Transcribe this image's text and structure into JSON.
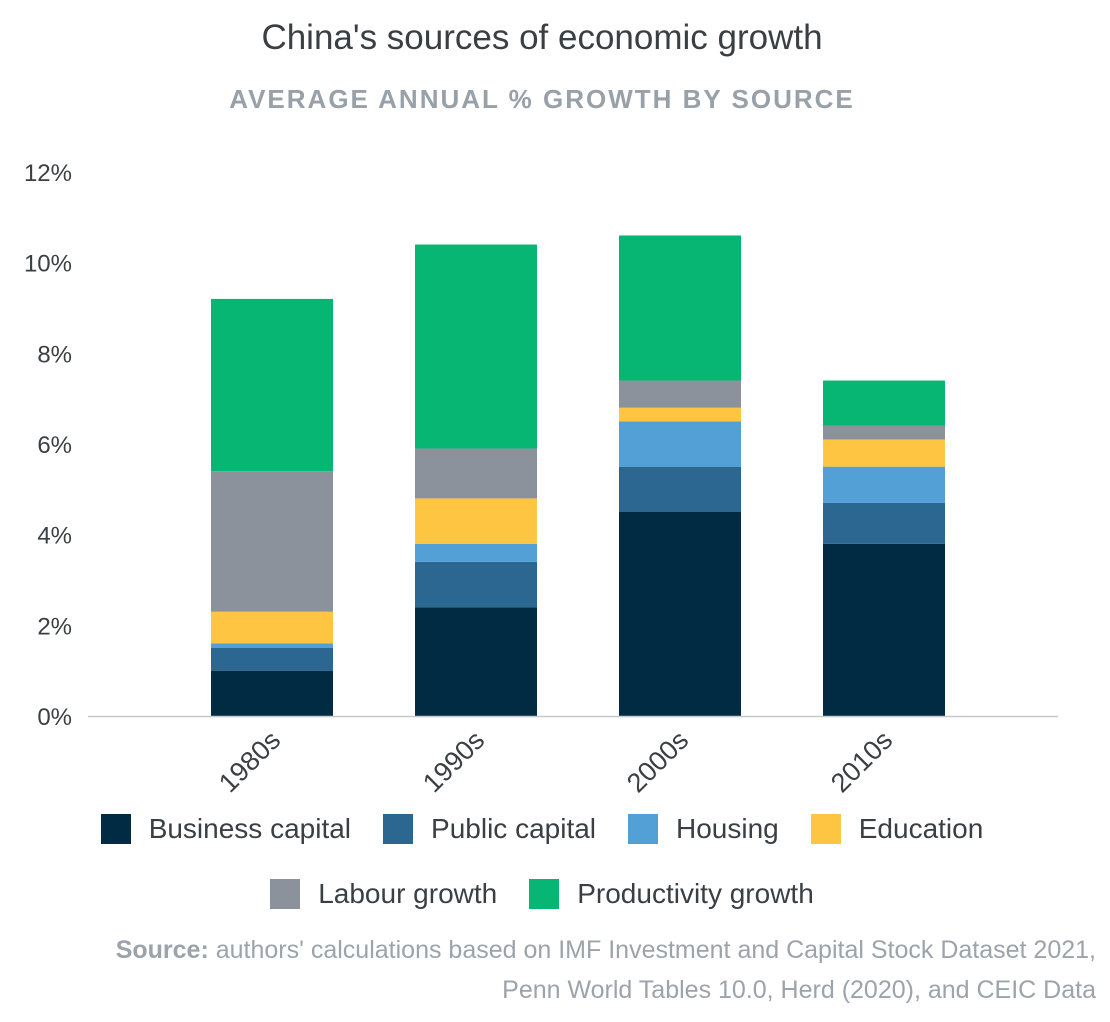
{
  "chart_data": {
    "type": "bar",
    "stacked": true,
    "title": "China's sources of economic growth",
    "subtitle": "AVERAGE ANNUAL % GROWTH BY SOURCE",
    "xlabel": "",
    "ylabel": "",
    "categories": [
      "1980s",
      "1990s",
      "2000s",
      "2010s"
    ],
    "ylim": [
      0,
      12
    ],
    "yticks": [
      {
        "value": 0,
        "label": "0%"
      },
      {
        "value": 2,
        "label": "2%"
      },
      {
        "value": 4,
        "label": "4%"
      },
      {
        "value": 6,
        "label": "6%"
      },
      {
        "value": 8,
        "label": "8%"
      },
      {
        "value": 10,
        "label": "10%"
      },
      {
        "value": 12,
        "label": "12%"
      }
    ],
    "grid": false,
    "legend_position": "bottom",
    "series": [
      {
        "name": "Business capital",
        "color": "#012a43",
        "values": [
          1.0,
          2.4,
          4.5,
          3.8
        ]
      },
      {
        "name": "Public capital",
        "color": "#2b6791",
        "values": [
          0.5,
          1.0,
          1.0,
          0.9
        ]
      },
      {
        "name": "Housing",
        "color": "#52a0d6",
        "values": [
          0.1,
          0.4,
          1.0,
          0.8
        ]
      },
      {
        "name": "Education",
        "color": "#fdc541",
        "values": [
          0.7,
          1.0,
          0.3,
          0.6
        ]
      },
      {
        "name": "Labour growth",
        "color": "#8b929b",
        "values": [
          3.1,
          1.1,
          0.6,
          0.3
        ]
      },
      {
        "name": "Productivity growth",
        "color": "#07b673",
        "values": [
          3.8,
          4.5,
          3.2,
          1.0
        ]
      }
    ]
  },
  "source": {
    "label": "Source:",
    "line1": "authors' calculations based on IMF Investment and Capital Stock Dataset 2021,",
    "line2": "Penn World Tables 10.0, Herd (2020), and CEIC Data"
  }
}
